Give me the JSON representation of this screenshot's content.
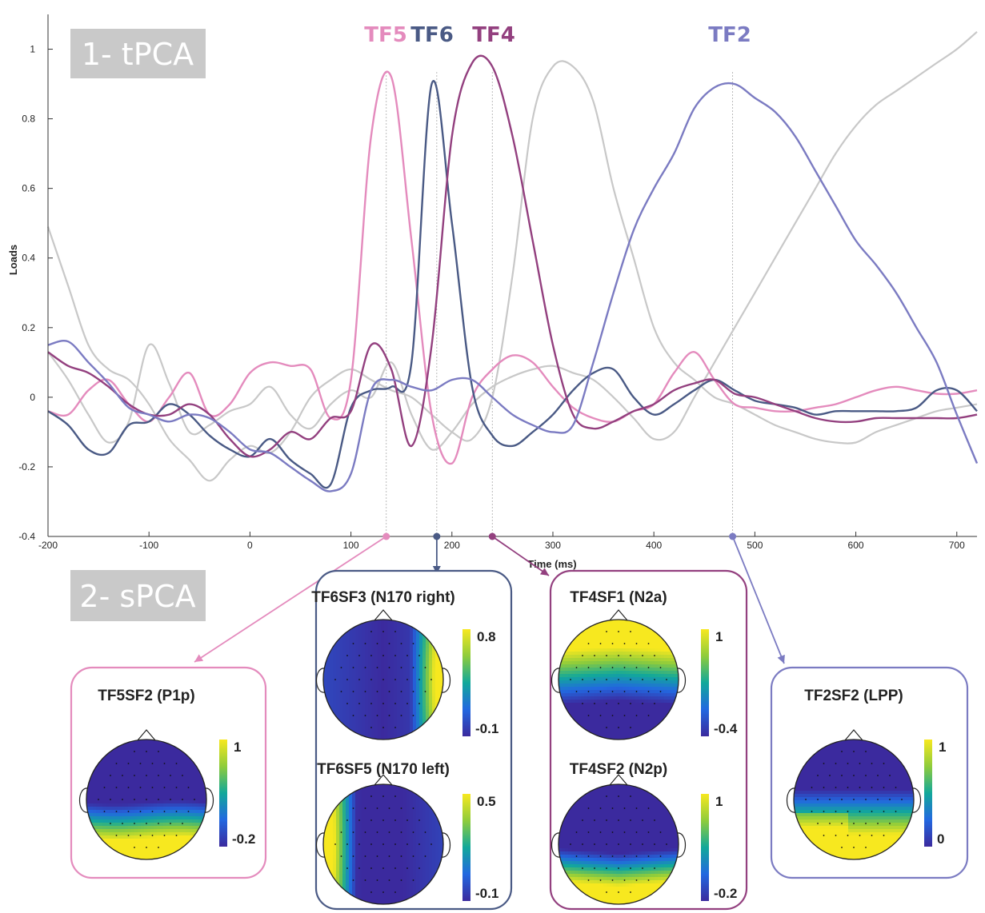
{
  "sections": {
    "tpca_label": "1- tPCA",
    "spca_label": "2- sPCA"
  },
  "chart_data": {
    "type": "line",
    "xlabel": "Time (ms)",
    "ylabel": "Loads",
    "xlim": [
      -200,
      720
    ],
    "ylim": [
      -0.4,
      1.1
    ],
    "x_ticks": [
      -200,
      -100,
      0,
      100,
      200,
      300,
      400,
      500,
      600,
      700
    ],
    "y_ticks": [
      -0.4,
      -0.2,
      0,
      0.2,
      0.4,
      0.6,
      0.8,
      1
    ],
    "grid": false,
    "x": [
      -200,
      -180,
      -160,
      -140,
      -120,
      -100,
      -80,
      -60,
      -40,
      -20,
      0,
      20,
      40,
      60,
      80,
      100,
      120,
      140,
      160,
      180,
      200,
      220,
      240,
      260,
      280,
      300,
      320,
      340,
      360,
      380,
      400,
      420,
      440,
      460,
      480,
      500,
      520,
      540,
      560,
      580,
      600,
      620,
      640,
      660,
      680,
      700,
      720
    ],
    "series": [
      {
        "name": "TF5",
        "color": "#e48bbd",
        "highlight": true,
        "peak_ms": 135,
        "values": [
          -0.04,
          -0.05,
          0.02,
          0.05,
          -0.02,
          -0.07,
          0.0,
          0.07,
          -0.05,
          -0.02,
          0.07,
          0.1,
          0.09,
          0.08,
          -0.06,
          0.05,
          0.75,
          0.92,
          0.45,
          -0.05,
          -0.19,
          0.0,
          0.08,
          0.12,
          0.1,
          0.03,
          -0.03,
          -0.06,
          -0.07,
          -0.04,
          -0.02,
          0.07,
          0.13,
          0.05,
          -0.02,
          -0.03,
          -0.04,
          -0.04,
          -0.03,
          -0.02,
          0.0,
          0.02,
          0.03,
          0.02,
          0.01,
          0.01,
          0.02
        ]
      },
      {
        "name": "TF6",
        "color": "#4a5a85",
        "highlight": true,
        "peak_ms": 185,
        "values": [
          -0.04,
          -0.08,
          -0.15,
          -0.16,
          -0.08,
          -0.07,
          -0.02,
          -0.05,
          -0.11,
          -0.15,
          -0.17,
          -0.12,
          -0.18,
          -0.22,
          -0.25,
          -0.03,
          0.02,
          0.03,
          0.1,
          0.9,
          0.5,
          0.03,
          -0.11,
          -0.14,
          -0.1,
          -0.05,
          0.02,
          0.07,
          0.08,
          0.0,
          -0.05,
          -0.02,
          0.02,
          0.05,
          0.02,
          -0.01,
          -0.02,
          -0.03,
          -0.05,
          -0.04,
          -0.04,
          -0.04,
          -0.04,
          -0.03,
          0.02,
          0.02,
          -0.04
        ]
      },
      {
        "name": "TF4",
        "color": "#93407f",
        "highlight": true,
        "peak_ms": 240,
        "values": [
          0.13,
          0.09,
          0.07,
          0.03,
          -0.02,
          -0.05,
          -0.05,
          -0.02,
          -0.05,
          -0.12,
          -0.17,
          -0.15,
          -0.1,
          -0.12,
          -0.06,
          -0.04,
          0.15,
          0.08,
          -0.14,
          0.15,
          0.75,
          0.96,
          0.95,
          0.75,
          0.45,
          0.15,
          -0.05,
          -0.09,
          -0.07,
          -0.04,
          -0.02,
          0.02,
          0.04,
          0.05,
          0.01,
          0.0,
          -0.02,
          -0.04,
          -0.06,
          -0.07,
          -0.07,
          -0.06,
          -0.06,
          -0.06,
          -0.06,
          -0.06,
          -0.05
        ]
      },
      {
        "name": "TF2",
        "color": "#7b7bc2",
        "highlight": true,
        "peak_ms": 478,
        "values": [
          0.15,
          0.16,
          0.1,
          0.04,
          -0.03,
          -0.05,
          -0.07,
          -0.05,
          -0.06,
          -0.1,
          -0.15,
          -0.16,
          -0.2,
          -0.24,
          -0.27,
          -0.22,
          0.02,
          0.05,
          0.03,
          0.02,
          0.05,
          0.05,
          0.0,
          -0.05,
          -0.08,
          -0.1,
          -0.08,
          0.1,
          0.3,
          0.48,
          0.6,
          0.7,
          0.83,
          0.89,
          0.9,
          0.86,
          0.82,
          0.75,
          0.65,
          0.55,
          0.45,
          0.38,
          0.3,
          0.2,
          0.1,
          -0.05,
          -0.19
        ]
      },
      {
        "name": "",
        "color": "#c8c8c8",
        "highlight": false,
        "values": [
          0.49,
          0.32,
          0.15,
          0.08,
          0.05,
          -0.02,
          -0.12,
          -0.18,
          -0.24,
          -0.18,
          -0.14,
          -0.16,
          -0.1,
          0.0,
          0.05,
          0.08,
          0.05,
          0.02,
          0.0,
          -0.05,
          -0.1,
          -0.12,
          0.0,
          0.35,
          0.8,
          0.95,
          0.95,
          0.85,
          0.6,
          0.4,
          0.2,
          0.1,
          0.05,
          0.0,
          -0.02,
          -0.05,
          -0.08,
          -0.1,
          -0.12,
          -0.13,
          -0.13,
          -0.1,
          -0.08,
          -0.06,
          -0.04,
          -0.03,
          -0.02
        ]
      },
      {
        "name": "",
        "color": "#c8c8c8",
        "highlight": false,
        "values": [
          0.13,
          0.05,
          -0.05,
          -0.13,
          -0.07,
          0.15,
          0.04,
          -0.1,
          -0.08,
          -0.04,
          -0.02,
          0.03,
          -0.05,
          -0.09,
          -0.02,
          0.02,
          0.0,
          0.1,
          -0.05,
          -0.15,
          -0.1,
          -0.02,
          0.03,
          0.06,
          0.08,
          0.09,
          0.07,
          0.05,
          0.0,
          -0.06,
          -0.12,
          -0.1,
          0.0,
          0.1,
          0.2,
          0.3,
          0.4,
          0.5,
          0.6,
          0.7,
          0.78,
          0.84,
          0.88,
          0.92,
          0.96,
          1.0,
          1.05
        ]
      }
    ]
  },
  "topomaps": [
    {
      "title": "TF5SF2 (P1p)",
      "cbar_max": "1",
      "cbar_min": "-0.2",
      "border": "#e48bbd",
      "pattern": "p1p"
    },
    {
      "title": "TF6SF3 (N170 right)",
      "cbar_max": "0.8",
      "cbar_min": "-0.1",
      "border": "#4a5a85",
      "pattern": "right"
    },
    {
      "title": "TF6SF5 (N170 left)",
      "cbar_max": "0.5",
      "cbar_min": "-0.1",
      "border": "#4a5a85",
      "pattern": "left"
    },
    {
      "title": "TF4SF1 (N2a)",
      "cbar_max": "1",
      "cbar_min": "-0.4",
      "border": "#93407f",
      "pattern": "n2a"
    },
    {
      "title": "TF4SF2 (N2p)",
      "cbar_max": "1",
      "cbar_min": "-0.2",
      "border": "#93407f",
      "pattern": "n2p"
    },
    {
      "title": "TF2SF2 (LPP)",
      "cbar_max": "1",
      "cbar_min": "0",
      "border": "#7b7bc2",
      "pattern": "lpp"
    }
  ]
}
